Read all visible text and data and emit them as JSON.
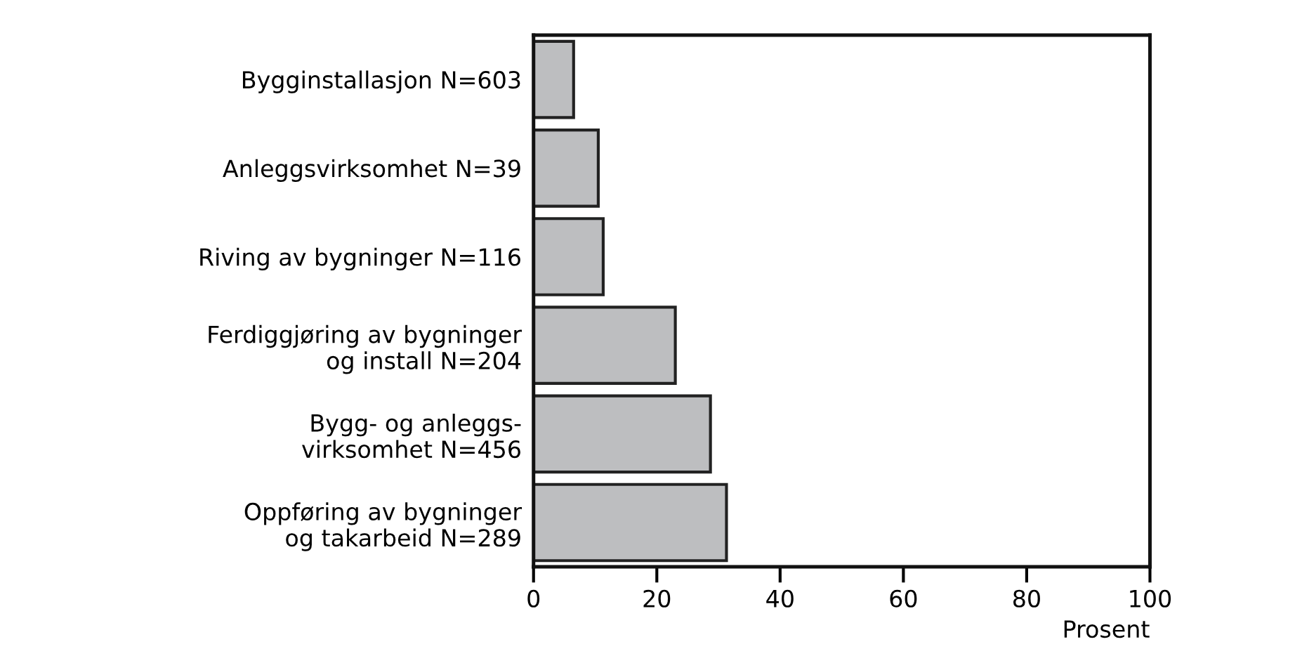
{
  "chart_data": {
    "type": "bar",
    "orientation": "horizontal",
    "xlabel": "Prosent",
    "categories": [
      "Bygginstallasjon N=603",
      "Anleggsvirksomhet N=39",
      "Riving av bygninger N=116",
      "Ferdiggjøring av bygninger\nog install N=204",
      "Bygg- og anleggs-\nvirksomhet N=456",
      "Oppføring av bygninger\nog takarbeid N=289"
    ],
    "values": [
      6.5,
      10.5,
      11.3,
      23.0,
      28.7,
      31.3
    ],
    "color": "#bdbec0",
    "xlim": [
      0,
      100
    ],
    "xticks": [
      0,
      20,
      40,
      60,
      80,
      100
    ],
    "grid": false
  }
}
